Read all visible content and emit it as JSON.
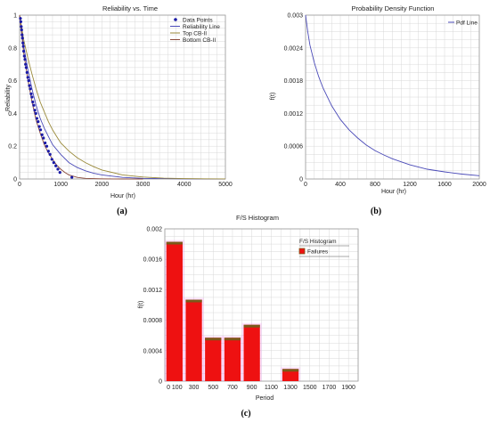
{
  "chart_data": [
    {
      "type": "line",
      "panel_label": "(a)",
      "title": "Reliability vs. Time",
      "xlabel": "Hour (hr)",
      "ylabel": "Reliability",
      "xlim": [
        0,
        5000
      ],
      "ylim": [
        0,
        1
      ],
      "xticks": [
        "0",
        "1000",
        "2000",
        "3000",
        "4000",
        "5000"
      ],
      "yticks": [
        "0",
        "0.2",
        "0.4",
        "0.6",
        "0.8",
        "1"
      ],
      "grid": true,
      "legend_position": "top-right",
      "legend": [
        "Data Points",
        "Reliability Line",
        "Top CB-II",
        "Bottom CB-II"
      ],
      "colors": {
        "points": "#1a1aa6",
        "line": "#4a4ab8",
        "top": "#9a8a3a",
        "bottom": "#8a4a3a"
      },
      "series": [
        {
          "name": "Data Points",
          "style": "points",
          "x": [
            20,
            30,
            40,
            50,
            60,
            70,
            80,
            90,
            100,
            115,
            130,
            145,
            160,
            180,
            200,
            220,
            240,
            260,
            280,
            300,
            320,
            345,
            370,
            395,
            420,
            450,
            480,
            510,
            545,
            580,
            620,
            660,
            700,
            740,
            785,
            830,
            880,
            930,
            980,
            1270
          ],
          "y": [
            0.98,
            0.96,
            0.93,
            0.91,
            0.88,
            0.86,
            0.83,
            0.81,
            0.78,
            0.75,
            0.73,
            0.7,
            0.68,
            0.65,
            0.62,
            0.6,
            0.57,
            0.55,
            0.52,
            0.5,
            0.47,
            0.45,
            0.42,
            0.4,
            0.37,
            0.35,
            0.32,
            0.3,
            0.27,
            0.25,
            0.22,
            0.2,
            0.17,
            0.15,
            0.12,
            0.1,
            0.08,
            0.06,
            0.04,
            0.01
          ]
        },
        {
          "name": "Reliability Line",
          "style": "line",
          "x": [
            0,
            100,
            200,
            300,
            400,
            500,
            600,
            700,
            800,
            900,
            1000,
            1200,
            1400,
            1600,
            1800,
            2000,
            2500,
            3000,
            3500,
            4000,
            4500,
            5000
          ],
          "y": [
            1,
            0.81,
            0.67,
            0.55,
            0.45,
            0.37,
            0.31,
            0.26,
            0.21,
            0.18,
            0.15,
            0.1,
            0.07,
            0.05,
            0.035,
            0.025,
            0.01,
            0.004,
            0.002,
            0.001,
            0.0005,
            0.0002
          ]
        },
        {
          "name": "Top CB-II",
          "style": "line",
          "x": [
            0,
            100,
            200,
            300,
            400,
            500,
            600,
            700,
            800,
            900,
            1000,
            1200,
            1400,
            1600,
            1800,
            2000,
            2500,
            3000,
            3500,
            4000,
            4500,
            5000
          ],
          "y": [
            1,
            0.85,
            0.74,
            0.64,
            0.55,
            0.47,
            0.41,
            0.35,
            0.3,
            0.26,
            0.22,
            0.17,
            0.13,
            0.1,
            0.075,
            0.055,
            0.025,
            0.012,
            0.005,
            0.002,
            0.001,
            0.0005
          ]
        },
        {
          "name": "Bottom CB-II",
          "style": "line",
          "x": [
            0,
            100,
            200,
            300,
            400,
            500,
            600,
            700,
            800,
            900,
            1000,
            1100,
            1200,
            1400,
            1600,
            2000,
            2500,
            3000
          ],
          "y": [
            1,
            0.77,
            0.61,
            0.47,
            0.36,
            0.28,
            0.21,
            0.16,
            0.12,
            0.085,
            0.06,
            0.04,
            0.025,
            0.01,
            0.004,
            0.001,
            0.0002,
            0
          ]
        }
      ]
    },
    {
      "type": "line",
      "panel_label": "(b)",
      "title": "Probability Density Function",
      "xlabel": "Hour (hr)",
      "ylabel": "f(t)",
      "xlim": [
        0,
        2000
      ],
      "ylim": [
        0,
        0.003
      ],
      "xticks": [
        "0",
        "400",
        "800",
        "1200",
        "1600",
        "2000"
      ],
      "yticks": [
        "0",
        "0.0006",
        "0.0012",
        "0.0018",
        "0.0024",
        "0.003"
      ],
      "grid": true,
      "legend_position": "top-right",
      "legend": [
        "Pdf Line"
      ],
      "colors": {
        "line": "#4a4ab8"
      },
      "series": [
        {
          "name": "Pdf Line",
          "x": [
            0,
            25,
            50,
            100,
            150,
            200,
            300,
            400,
            500,
            600,
            700,
            800,
            900,
            1000,
            1200,
            1400,
            1600,
            1800,
            2000
          ],
          "y": [
            0.003,
            0.0027,
            0.00245,
            0.00213,
            0.00188,
            0.00167,
            0.00134,
            0.00109,
            0.0009,
            0.00075,
            0.00062,
            0.00052,
            0.00044,
            0.00037,
            0.00026,
            0.00018,
            0.00013,
            9e-05,
            6e-05
          ]
        }
      ]
    },
    {
      "type": "bar",
      "panel_label": "(c)",
      "title": "F/S Histogram",
      "xlabel": "Period",
      "ylabel": "f(t)",
      "ylim": [
        0,
        0.002
      ],
      "categories": [
        "0 100",
        "300",
        "500",
        "700",
        "900",
        "1100",
        "1300",
        "1500",
        "1700",
        "1900"
      ],
      "yticks": [
        "0",
        "0.0004",
        "0.0008",
        "0.0012",
        "0.0016",
        "0.002"
      ],
      "grid": true,
      "legend_position": "top-right",
      "legend_title": "F/S Histogram",
      "legend": [
        "Failures"
      ],
      "colors": {
        "bar": "#ee1111",
        "bar_top": "#7a5a1a",
        "glow": "#ff66ff"
      },
      "series": [
        {
          "name": "Failures",
          "values": [
            0.00183,
            0.00107,
            0.00057,
            0.00057,
            0.00074,
            0,
            0.00016,
            0,
            0,
            0
          ]
        }
      ]
    }
  ]
}
